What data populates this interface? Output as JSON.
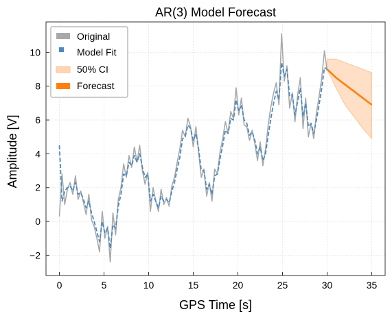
{
  "chart_data": {
    "type": "line",
    "title": "AR(3) Model Forecast",
    "xlabel": "GPS Time [s]",
    "ylabel": "Amplitude [V]",
    "xlim": [
      -1.5,
      36.5
    ],
    "ylim": [
      -3.2,
      11.8
    ],
    "xticks": [
      0,
      5,
      10,
      15,
      20,
      25,
      30,
      35
    ],
    "yticks": [
      -2,
      0,
      2,
      4,
      6,
      8,
      10
    ],
    "xtick_labels": [
      "0",
      "5",
      "10",
      "15",
      "20",
      "25",
      "30",
      "35"
    ],
    "ytick_labels": [
      "−2",
      "0",
      "2",
      "4",
      "6",
      "8",
      "10"
    ],
    "grid": true,
    "legend_position": "top-left",
    "colors": {
      "original": "#a9a9a9",
      "model_fit": "#4a8ac1",
      "ci_fill": "#ffd5b3",
      "forecast": "#ff7f0e"
    },
    "legend": [
      {
        "label": "Original",
        "key": "original"
      },
      {
        "label": "Model Fit",
        "key": "model_fit"
      },
      {
        "label": "50% CI",
        "key": "ci_fill"
      },
      {
        "label": "Forecast",
        "key": "forecast"
      }
    ],
    "series": [
      {
        "name": "Original",
        "style": "solid",
        "x": [
          0,
          0.3,
          0.6,
          0.9,
          1.2,
          1.5,
          1.8,
          2.1,
          2.4,
          2.7,
          3.0,
          3.3,
          3.6,
          3.9,
          4.2,
          4.5,
          4.8,
          5.1,
          5.4,
          5.7,
          6.0,
          6.3,
          6.6,
          6.9,
          7.2,
          7.5,
          7.8,
          8.1,
          8.4,
          8.7,
          9.0,
          9.3,
          9.6,
          9.9,
          10.2,
          10.5,
          10.8,
          11.1,
          11.4,
          11.7,
          12.0,
          12.3,
          12.6,
          12.9,
          13.2,
          13.5,
          13.8,
          14.1,
          14.4,
          14.7,
          15.0,
          15.3,
          15.6,
          15.9,
          16.2,
          16.5,
          16.8,
          17.1,
          17.4,
          17.7,
          18.0,
          18.3,
          18.6,
          18.9,
          19.2,
          19.5,
          19.8,
          20.1,
          20.4,
          20.7,
          21.0,
          21.3,
          21.6,
          21.9,
          22.2,
          22.5,
          22.8,
          23.1,
          23.4,
          23.7,
          24.0,
          24.3,
          24.6,
          24.9,
          25.2,
          25.5,
          25.8,
          26.1,
          26.4,
          26.7,
          27.0,
          27.3,
          27.6,
          27.9,
          28.2,
          28.5,
          28.8,
          29.1,
          29.4,
          29.7,
          30.0
        ],
        "y": [
          0.3,
          2.8,
          1.0,
          1.9,
          2.3,
          1.6,
          2.7,
          1.3,
          1.8,
          1.1,
          0.4,
          1.6,
          0.1,
          -0.3,
          -1.0,
          -1.8,
          0.6,
          -1.0,
          -0.3,
          -2.4,
          0.5,
          -0.8,
          1.3,
          2.0,
          3.4,
          2.6,
          3.9,
          3.2,
          4.4,
          3.5,
          4.5,
          3.0,
          2.2,
          2.9,
          0.6,
          2.0,
          1.2,
          0.6,
          1.9,
          1.0,
          1.4,
          0.9,
          2.1,
          2.6,
          3.5,
          4.3,
          5.4,
          5.0,
          6.1,
          5.6,
          4.4,
          5.6,
          4.1,
          2.6,
          3.1,
          1.5,
          2.3,
          1.2,
          3.1,
          2.8,
          4.1,
          4.9,
          5.9,
          5.2,
          6.5,
          6.1,
          7.9,
          6.3,
          7.3,
          5.7,
          5.6,
          4.8,
          5.4,
          4.6,
          3.6,
          4.7,
          3.3,
          4.3,
          5.7,
          6.8,
          7.6,
          8.2,
          6.9,
          11.1,
          8.3,
          9.2,
          6.7,
          7.6,
          5.9,
          7.5,
          8.5,
          5.5,
          7.3,
          5.0,
          5.8,
          4.9,
          6.4,
          7.4,
          8.5,
          10.1,
          8.9
        ],
        "color_key": "original"
      },
      {
        "name": "Model Fit",
        "style": "dashed",
        "x": [
          0,
          0.3,
          0.6,
          0.9,
          1.2,
          1.5,
          1.8,
          2.1,
          2.4,
          2.7,
          3.0,
          3.3,
          3.6,
          3.9,
          4.2,
          4.5,
          4.8,
          5.1,
          5.4,
          5.7,
          6.0,
          6.3,
          6.6,
          6.9,
          7.2,
          7.5,
          7.8,
          8.1,
          8.4,
          8.7,
          9.0,
          9.3,
          9.6,
          9.9,
          10.2,
          10.5,
          10.8,
          11.1,
          11.4,
          11.7,
          12.0,
          12.3,
          12.6,
          12.9,
          13.2,
          13.5,
          13.8,
          14.1,
          14.4,
          14.7,
          15.0,
          15.3,
          15.6,
          15.9,
          16.2,
          16.5,
          16.8,
          17.1,
          17.4,
          17.7,
          18.0,
          18.3,
          18.6,
          18.9,
          19.2,
          19.5,
          19.8,
          20.1,
          20.4,
          20.7,
          21.0,
          21.3,
          21.6,
          21.9,
          22.2,
          22.5,
          22.8,
          23.1,
          23.4,
          23.7,
          24.0,
          24.3,
          24.6,
          24.9,
          25.2,
          25.5,
          25.8,
          26.1,
          26.4,
          26.7,
          27.0,
          27.3,
          27.6,
          27.9,
          28.2,
          28.5,
          28.8,
          29.1,
          29.4,
          29.7,
          30.0
        ],
        "y": [
          4.5,
          1.2,
          1.8,
          2.0,
          2.1,
          1.8,
          2.3,
          1.6,
          1.7,
          1.3,
          0.8,
          1.2,
          0.5,
          0.0,
          -0.6,
          -1.2,
          0.0,
          -0.7,
          -0.4,
          -1.6,
          -0.2,
          -0.4,
          0.9,
          1.6,
          2.8,
          2.7,
          3.5,
          3.3,
          3.9,
          3.5,
          4.0,
          3.2,
          2.6,
          2.8,
          1.2,
          1.6,
          1.2,
          0.8,
          1.5,
          1.2,
          1.3,
          1.1,
          1.8,
          2.3,
          3.1,
          3.8,
          4.9,
          5.0,
          5.7,
          5.5,
          4.8,
          5.2,
          4.3,
          3.0,
          3.0,
          1.9,
          2.2,
          1.6,
          2.7,
          2.8,
          3.7,
          4.5,
          5.4,
          5.2,
          6.1,
          6.0,
          7.2,
          6.5,
          6.9,
          6.0,
          5.8,
          5.1,
          5.3,
          4.8,
          4.0,
          4.4,
          3.6,
          4.0,
          5.1,
          6.1,
          7.0,
          7.7,
          7.2,
          9.4,
          8.6,
          9.0,
          7.4,
          7.5,
          6.3,
          7.1,
          7.9,
          6.2,
          7.0,
          5.6,
          5.8,
          5.2,
          6.0,
          6.9,
          7.9,
          9.1,
          9.0
        ],
        "color_key": "model_fit"
      },
      {
        "name": "Forecast",
        "style": "solid",
        "x": [
          30.0,
          31.0,
          32.0,
          33.0,
          34.0,
          35.0
        ],
        "y": [
          9.0,
          8.5,
          8.1,
          7.7,
          7.3,
          6.9
        ],
        "color_key": "forecast"
      }
    ],
    "ci": {
      "name": "50% CI",
      "x": [
        30.0,
        31.0,
        32.0,
        33.0,
        34.0,
        35.0
      ],
      "lower": [
        9.0,
        7.9,
        6.9,
        6.2,
        5.5,
        4.9
      ],
      "upper": [
        9.6,
        9.6,
        9.4,
        9.2,
        9.0,
        8.8
      ],
      "color_key": "ci_fill"
    }
  }
}
